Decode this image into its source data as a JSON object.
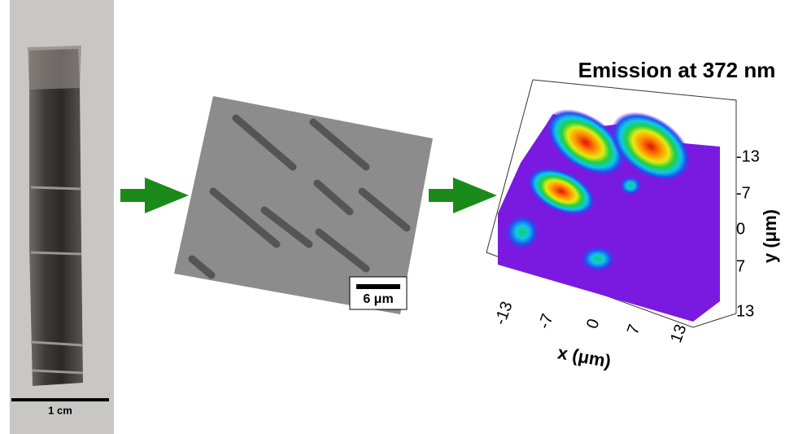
{
  "photo": {
    "scale_bar": "1 cm"
  },
  "sem": {
    "scale_bar": "6 μm"
  },
  "map": {
    "title": "Emission at 372 nm",
    "x_label": "x (μm)",
    "y_label": "y (μm)",
    "x_ticks": [
      "-13",
      "-7",
      "0",
      "7",
      "13"
    ],
    "y_ticks": [
      "-13",
      "-7",
      "0",
      "7",
      "13"
    ]
  }
}
